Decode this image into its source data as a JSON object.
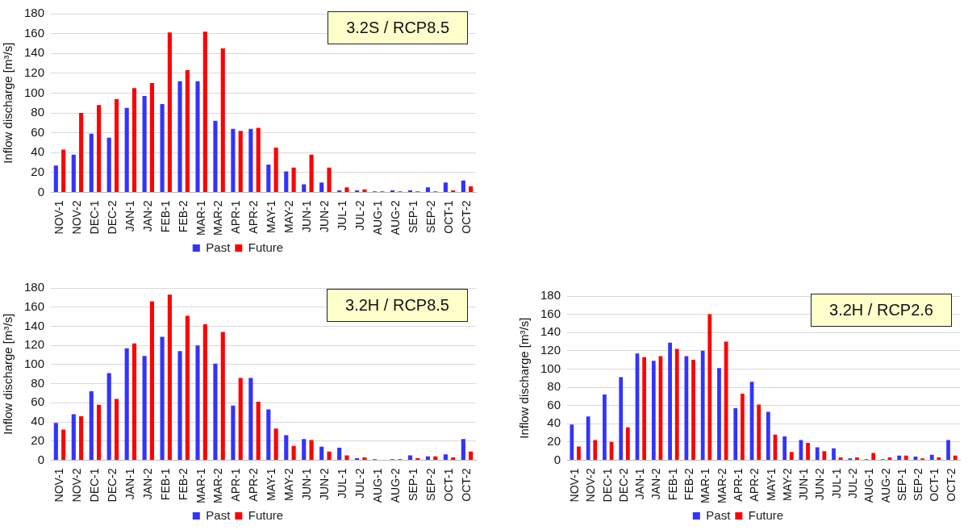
{
  "chart_data": [
    {
      "type": "bar",
      "title": "3.2S / RCP8.5",
      "ylabel": "Inflow discharge [m³/s]",
      "categories": [
        "NOV-1",
        "NOV-2",
        "DEC-1",
        "DEC-2",
        "JAN-1",
        "JAN-2",
        "FEB-1",
        "FEB-2",
        "MAR-1",
        "MAR-2",
        "APR-1",
        "APR-2",
        "MAY-1",
        "MAY-2",
        "JUN-1",
        "JUN-2",
        "JUL-1",
        "JUL-2",
        "AUG-1",
        "AUG-2",
        "SEP-1",
        "SEP-2",
        "OCT-1",
        "OCT-2"
      ],
      "series": [
        {
          "name": "Past",
          "color": "#3333ff",
          "values": [
            27,
            38,
            59,
            55,
            85,
            97,
            89,
            112,
            112,
            72,
            64,
            64,
            28,
            21,
            8,
            10,
            2,
            2,
            1,
            2,
            2,
            5,
            10,
            12
          ]
        },
        {
          "name": "Future",
          "color": "#ff0000",
          "values": [
            43,
            80,
            88,
            94,
            105,
            110,
            161,
            123,
            162,
            145,
            62,
            65,
            45,
            25,
            38,
            25,
            5,
            3,
            1,
            1,
            1,
            1,
            2,
            6
          ]
        }
      ],
      "ylim": [
        0,
        180
      ],
      "yticks": [
        0,
        20,
        40,
        60,
        80,
        100,
        120,
        140,
        160,
        180
      ],
      "grid": "y",
      "legend": "bottom"
    },
    {
      "type": "bar",
      "title": "3.2H / RCP8.5",
      "ylabel": "Inflow discharge [m³/s]",
      "categories": [
        "NOV-1",
        "NOV-2",
        "DEC-1",
        "DEC-2",
        "JAN-1",
        "JAN-2",
        "FEB-1",
        "FEB-2",
        "MAR-1",
        "MAR-2",
        "APR-1",
        "APR-2",
        "MAY-1",
        "MAY-2",
        "JUN-1",
        "JUN-2",
        "JUL-1",
        "JUL-2",
        "AUG-1",
        "AUG-2",
        "SEP-1",
        "SEP-2",
        "OCT-1",
        "OCT-2"
      ],
      "series": [
        {
          "name": "Past",
          "color": "#3333ff",
          "values": [
            39,
            48,
            72,
            91,
            117,
            109,
            129,
            114,
            120,
            101,
            57,
            86,
            53,
            26,
            22,
            14,
            13,
            2,
            1,
            1,
            5,
            4,
            6,
            22
          ]
        },
        {
          "name": "Future",
          "color": "#ff0000",
          "values": [
            32,
            46,
            58,
            64,
            122,
            166,
            173,
            151,
            142,
            134,
            86,
            61,
            33,
            15,
            21,
            9,
            5,
            3,
            0,
            1,
            2,
            4,
            3,
            9
          ]
        }
      ],
      "ylim": [
        0,
        180
      ],
      "yticks": [
        0,
        20,
        40,
        60,
        80,
        100,
        120,
        140,
        160,
        180
      ],
      "grid": "y",
      "legend": "bottom"
    },
    {
      "type": "bar",
      "title": "3.2H / RCP2.6",
      "ylabel": "Inflow discharge [m³/s]",
      "categories": [
        "NOV-1",
        "NOV-2",
        "DEC-1",
        "DEC-2",
        "JAN-1",
        "JAN-2",
        "FEB-1",
        "FEB-2",
        "MAR-1",
        "MAR-2",
        "APR-1",
        "APR-2",
        "MAY-1",
        "MAY-2",
        "JUN-1",
        "JUN-2",
        "JUL-1",
        "JUL-2",
        "AUG-1",
        "AUG-2",
        "SEP-1",
        "SEP-2",
        "OCT-1",
        "OCT-2"
      ],
      "series": [
        {
          "name": "Past",
          "color": "#3333ff",
          "values": [
            39,
            48,
            72,
            91,
            117,
            109,
            129,
            114,
            120,
            101,
            57,
            86,
            53,
            26,
            22,
            14,
            13,
            2,
            1,
            1,
            5,
            4,
            6,
            22
          ]
        },
        {
          "name": "Future",
          "color": "#ff0000",
          "values": [
            15,
            22,
            20,
            36,
            113,
            114,
            122,
            110,
            160,
            130,
            73,
            61,
            28,
            9,
            19,
            10,
            3,
            3,
            8,
            3,
            5,
            2,
            3,
            5
          ]
        }
      ],
      "ylim": [
        0,
        180
      ],
      "yticks": [
        0,
        20,
        40,
        60,
        80,
        100,
        120,
        140,
        160,
        180
      ],
      "grid": "y",
      "legend": "bottom"
    }
  ]
}
